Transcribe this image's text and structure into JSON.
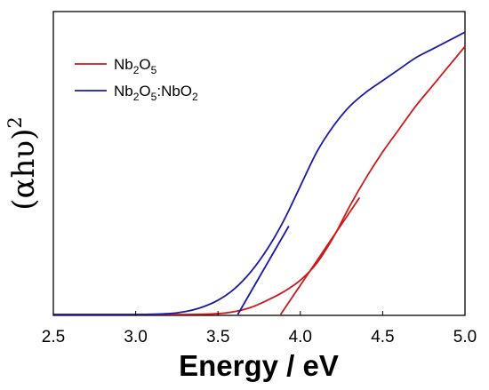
{
  "chart_data": {
    "type": "line",
    "xlabel": "Energy / eV",
    "ylabel": "(αhυ)",
    "ylabel_exponent": "2",
    "xlim": [
      2.5,
      5.0
    ],
    "ylim": [
      0,
      1.0
    ],
    "x_ticks": [
      "2.5",
      "3.0",
      "3.5",
      "4.0",
      "4.5",
      "5.0"
    ],
    "grid": false,
    "legend_position": "top-left",
    "legend": [
      {
        "base1": "Nb",
        "sub1": "2",
        "base2": "O",
        "sub2": "5",
        "base3": "",
        "sub3": "",
        "base4": "",
        "sub4": "",
        "color": "#cc1a1a"
      },
      {
        "base1": "Nb",
        "sub1": "2",
        "base2": "O",
        "sub2": "5",
        "base3": ":NbO",
        "sub3": "2",
        "base4": "",
        "sub4": "",
        "color": "#1a1aa6"
      }
    ],
    "series": [
      {
        "color": "#cc1a1a",
        "x": [
          2.5,
          3.0,
          3.3,
          3.5,
          3.6,
          3.7,
          3.8,
          3.9,
          4.0,
          4.1,
          4.2,
          4.3,
          4.4,
          4.5,
          4.6,
          4.7,
          4.8,
          4.9,
          5.0
        ],
        "y": [
          0.0,
          0.0,
          0.0,
          0.003,
          0.01,
          0.025,
          0.05,
          0.08,
          0.12,
          0.18,
          0.27,
          0.38,
          0.48,
          0.57,
          0.65,
          0.73,
          0.8,
          0.87,
          0.94
        ]
      },
      {
        "color": "#1a1aa6",
        "x": [
          2.5,
          3.0,
          3.2,
          3.3,
          3.4,
          3.5,
          3.6,
          3.7,
          3.8,
          3.9,
          4.0,
          4.1,
          4.2,
          4.3,
          4.4,
          4.5,
          4.6,
          4.7,
          4.8,
          4.9,
          5.0
        ],
        "y": [
          0.0,
          0.0,
          0.003,
          0.01,
          0.025,
          0.05,
          0.09,
          0.15,
          0.23,
          0.33,
          0.45,
          0.57,
          0.66,
          0.73,
          0.78,
          0.82,
          0.86,
          0.9,
          0.93,
          0.96,
          0.99
        ]
      }
    ],
    "tangent_lines": [
      {
        "color": "#cc1a1a",
        "x": [
          3.88,
          4.36
        ],
        "y": [
          0.0,
          0.41
        ]
      },
      {
        "color": "#1a1aa6",
        "x": [
          3.62,
          3.93
        ],
        "y": [
          0.0,
          0.31
        ]
      }
    ]
  }
}
